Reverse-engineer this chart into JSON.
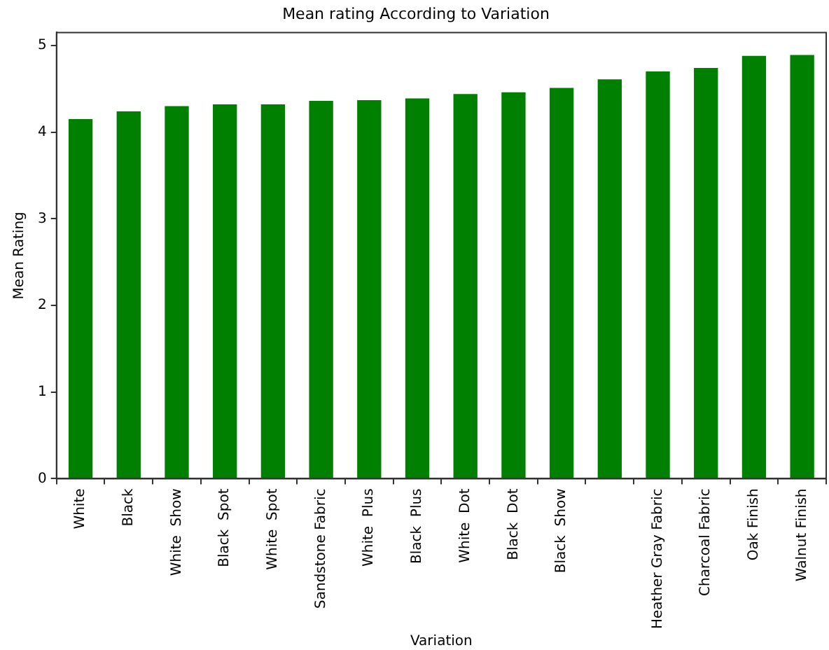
{
  "chart_data": {
    "type": "bar",
    "title": "Mean rating According to Variation",
    "xlabel": "Variation",
    "ylabel": "Mean Rating",
    "categories": [
      "White",
      "Black",
      "White  Show",
      "Black  Spot",
      "White  Spot",
      "Sandstone Fabric",
      "White  Plus",
      "Black  Plus",
      "White  Dot",
      "Black  Dot",
      "Black  Show",
      null,
      "Heather Gray Fabric",
      "Charcoal Fabric",
      "Oak Finish",
      "Walnut Finish"
    ],
    "values": [
      4.15,
      4.24,
      4.3,
      4.32,
      4.32,
      4.36,
      4.37,
      4.39,
      4.44,
      4.46,
      4.51,
      4.61,
      4.7,
      4.74,
      4.88,
      4.89
    ],
    "color": "#008000",
    "ylim": [
      0,
      5.15
    ],
    "yticks": [
      0,
      1,
      2,
      3,
      4,
      5
    ],
    "grid": false,
    "legend": false
  }
}
